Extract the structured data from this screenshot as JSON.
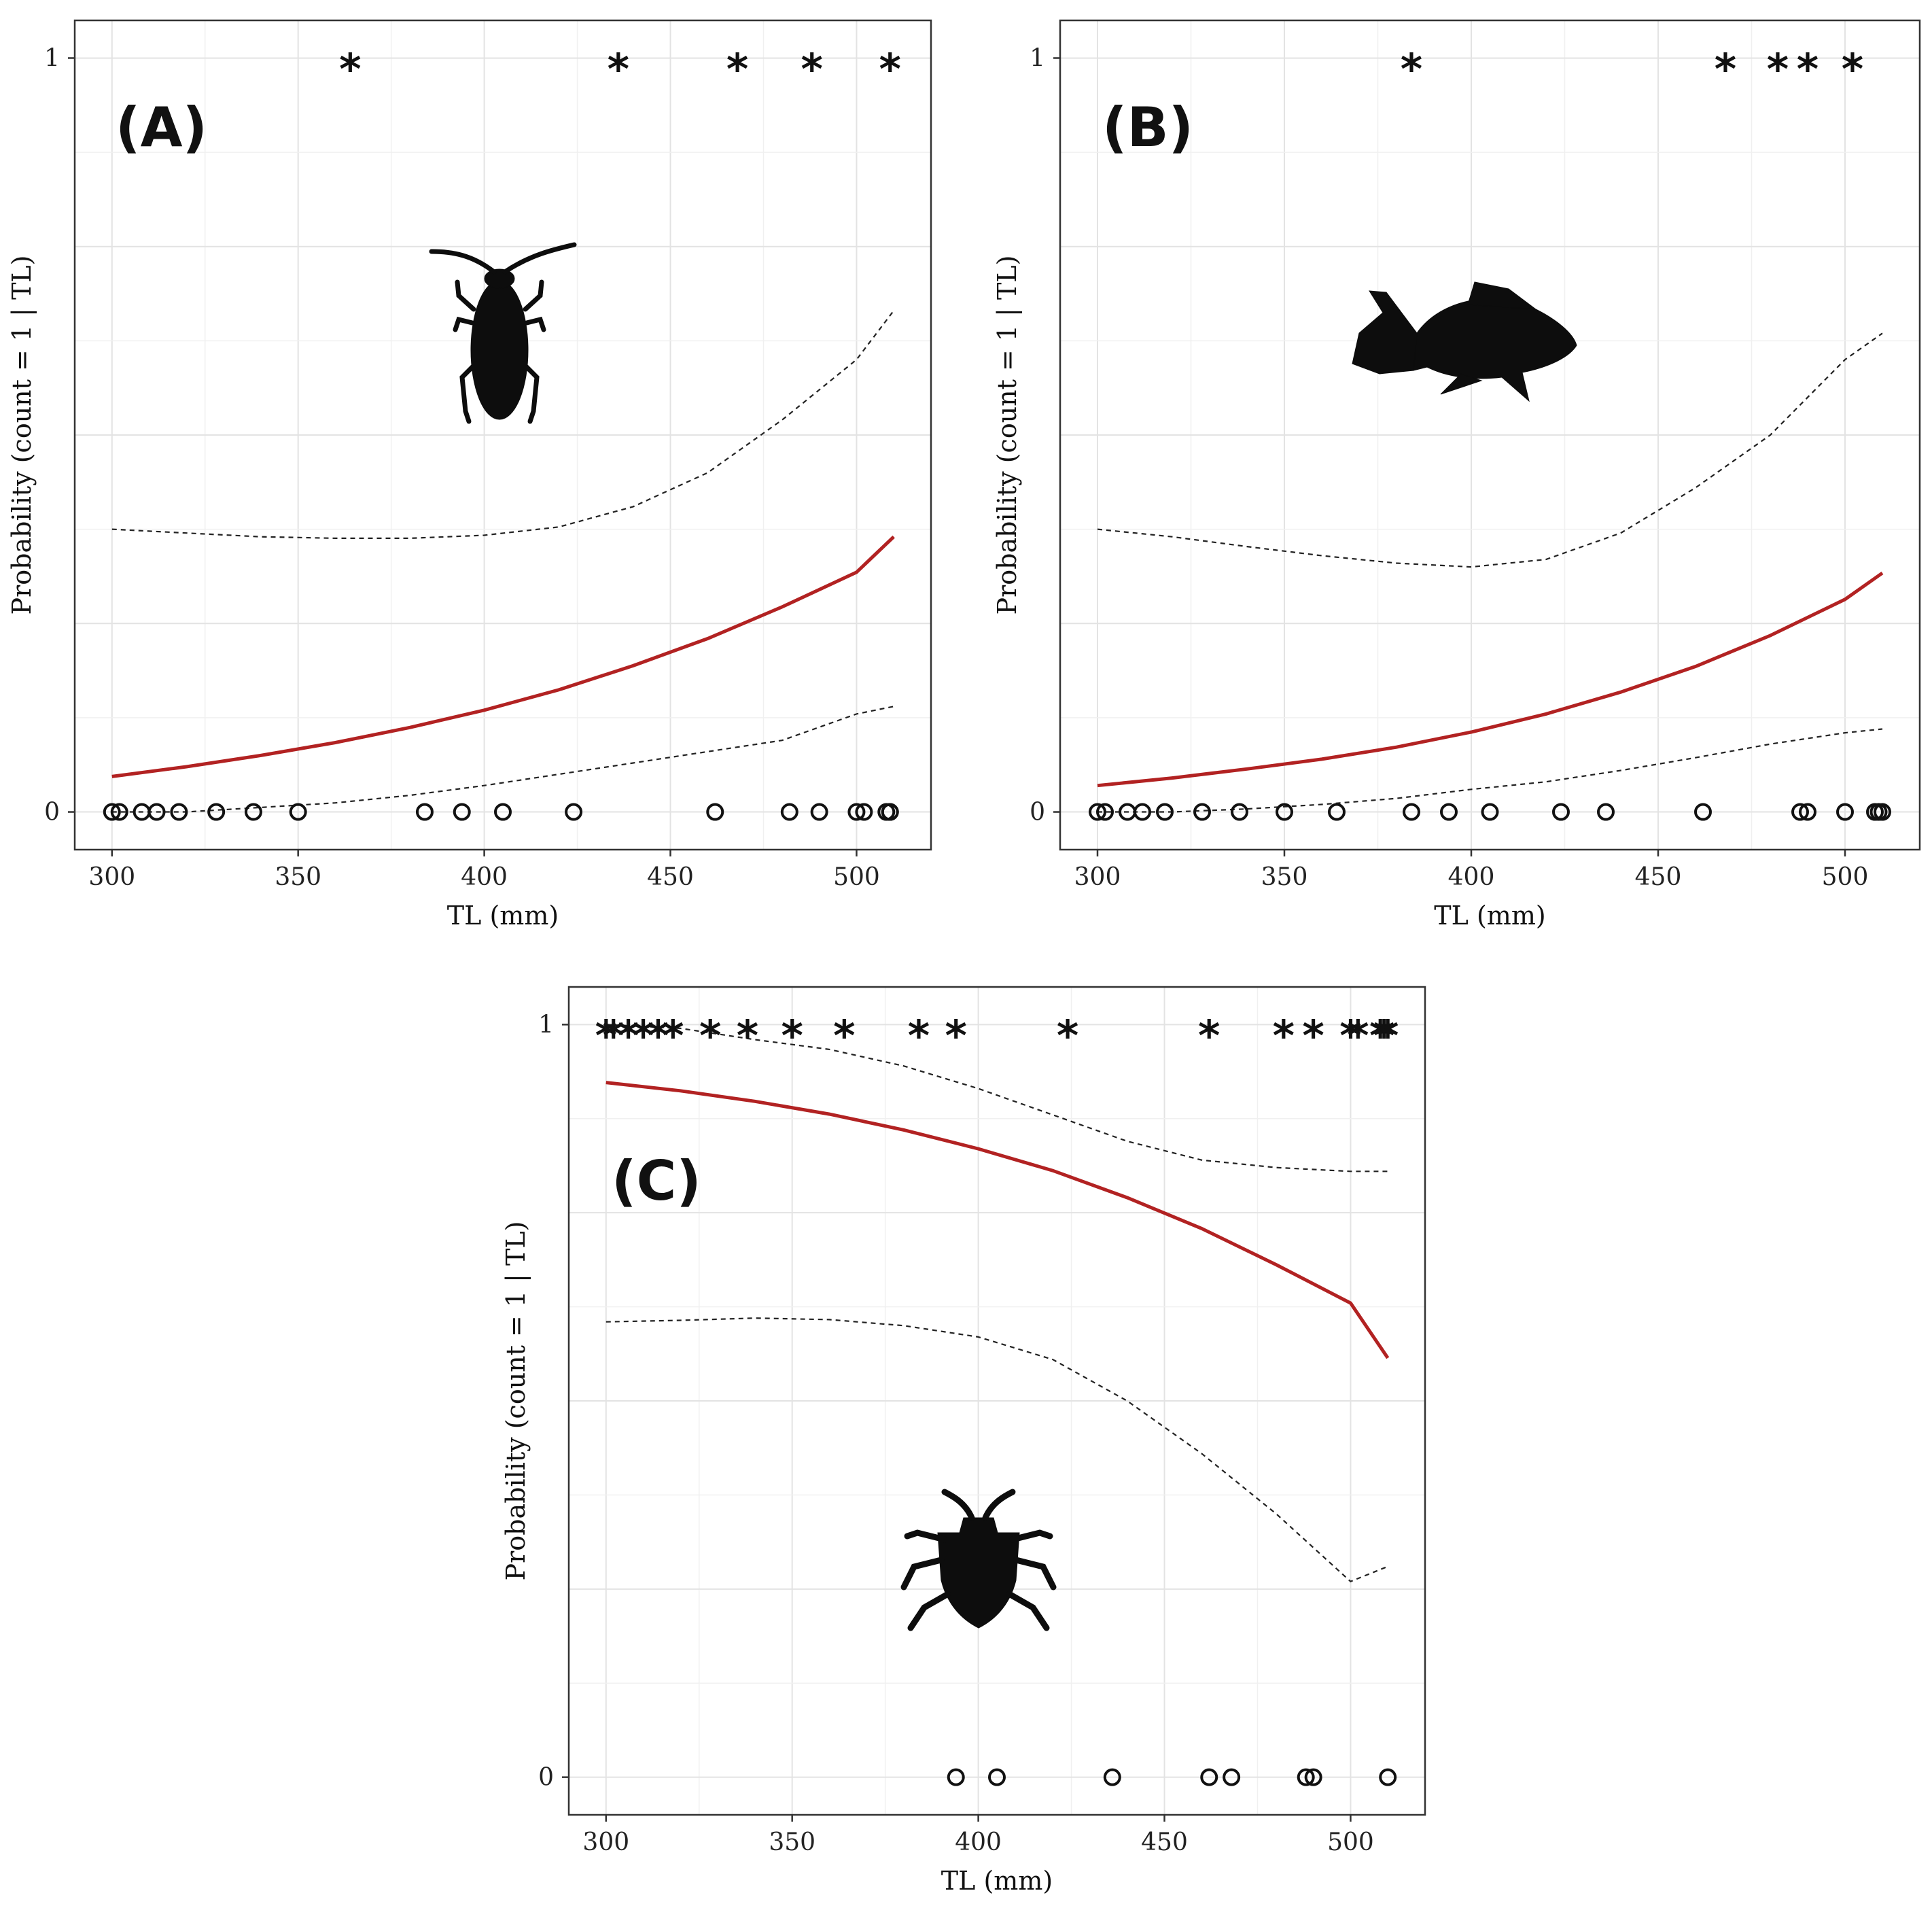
{
  "chart_data": [
    {
      "id": "A",
      "type": "scatter",
      "panel_label": "(A)",
      "icon": "cockroach-icon",
      "xlabel": "TL (mm)",
      "ylabel": "Probability (count = 1 | TL)",
      "xlim": [
        290,
        520
      ],
      "ylim": [
        -0.05,
        1.05
      ],
      "xticks": [
        300,
        350,
        400,
        450,
        500
      ],
      "yticks": [
        0,
        1
      ],
      "ytick_labels": [
        "0",
        "1"
      ],
      "grid": true,
      "fit": {
        "x": [
          300,
          320,
          340,
          360,
          380,
          400,
          420,
          440,
          460,
          480,
          500,
          510
        ],
        "y": [
          0.047,
          0.06,
          0.075,
          0.092,
          0.112,
          0.135,
          0.162,
          0.194,
          0.23,
          0.272,
          0.318,
          0.365
        ]
      },
      "ci_upper": {
        "x": [
          300,
          320,
          340,
          360,
          380,
          400,
          420,
          440,
          460,
          480,
          500,
          510
        ],
        "y": [
          0.375,
          0.37,
          0.365,
          0.363,
          0.363,
          0.367,
          0.378,
          0.405,
          0.45,
          0.52,
          0.6,
          0.665
        ]
      },
      "ci_lower": {
        "x": [
          300,
          320,
          340,
          360,
          380,
          400,
          420,
          440,
          460,
          480,
          500,
          510
        ],
        "y": [
          0.0,
          0.0,
          0.006,
          0.012,
          0.022,
          0.035,
          0.05,
          0.065,
          0.08,
          0.095,
          0.13,
          0.14
        ]
      },
      "points_1": [
        364,
        436,
        468,
        488,
        509
      ],
      "points_0": [
        300,
        302,
        308,
        312,
        318,
        328,
        338,
        350,
        384,
        394,
        405,
        424,
        462,
        482,
        490,
        500,
        502,
        508,
        509,
        509
      ]
    },
    {
      "id": "B",
      "type": "scatter",
      "panel_label": "(B)",
      "icon": "fish-icon",
      "xlabel": "TL (mm)",
      "ylabel": "Probability (count = 1 | TL)",
      "xlim": [
        290,
        520
      ],
      "ylim": [
        -0.05,
        1.05
      ],
      "xticks": [
        300,
        350,
        400,
        450,
        500
      ],
      "yticks": [
        0,
        1
      ],
      "ytick_labels": [
        "0",
        "1"
      ],
      "grid": true,
      "fit": {
        "x": [
          300,
          320,
          340,
          360,
          380,
          400,
          420,
          440,
          460,
          480,
          500,
          510
        ],
        "y": [
          0.035,
          0.045,
          0.057,
          0.07,
          0.086,
          0.106,
          0.13,
          0.159,
          0.193,
          0.234,
          0.282,
          0.317
        ]
      },
      "ci_upper": {
        "x": [
          300,
          320,
          340,
          360,
          380,
          400,
          420,
          440,
          460,
          480,
          500,
          510
        ],
        "y": [
          0.375,
          0.365,
          0.352,
          0.34,
          0.33,
          0.325,
          0.335,
          0.37,
          0.43,
          0.5,
          0.6,
          0.635
        ]
      },
      "ci_lower": {
        "x": [
          300,
          320,
          340,
          360,
          380,
          400,
          420,
          440,
          460,
          480,
          500,
          510
        ],
        "y": [
          0.0,
          0.0,
          0.004,
          0.01,
          0.018,
          0.03,
          0.04,
          0.055,
          0.072,
          0.09,
          0.105,
          0.11
        ]
      },
      "points_1": [
        384,
        468,
        482,
        490,
        502
      ],
      "points_0": [
        300,
        302,
        308,
        312,
        318,
        328,
        338,
        350,
        364,
        384,
        394,
        405,
        424,
        436,
        462,
        488,
        490,
        500,
        508,
        509,
        510
      ]
    },
    {
      "id": "C",
      "type": "scatter",
      "panel_label": "(C)",
      "icon": "stink-bug-icon",
      "xlabel": "TL (mm)",
      "ylabel": "Probability (count = 1 | TL)",
      "xlim": [
        290,
        520
      ],
      "ylim": [
        -0.05,
        1.05
      ],
      "xticks": [
        300,
        350,
        400,
        450,
        500
      ],
      "yticks": [
        0,
        1
      ],
      "ytick_labels": [
        "0",
        "1"
      ],
      "grid": true,
      "fit": {
        "x": [
          300,
          320,
          340,
          360,
          380,
          400,
          420,
          440,
          460,
          480,
          500,
          510
        ],
        "y": [
          0.923,
          0.912,
          0.898,
          0.881,
          0.86,
          0.835,
          0.806,
          0.77,
          0.729,
          0.681,
          0.63,
          0.557
        ]
      },
      "ci_upper": {
        "x": [
          300,
          320,
          340,
          360,
          380,
          400,
          420,
          440,
          460,
          480,
          500,
          510
        ],
        "y": [
          1.0,
          0.995,
          0.98,
          0.967,
          0.945,
          0.915,
          0.88,
          0.845,
          0.82,
          0.81,
          0.805,
          0.805
        ]
      },
      "ci_lower": {
        "x": [
          300,
          320,
          340,
          360,
          380,
          400,
          420,
          440,
          460,
          480,
          500,
          510
        ],
        "y": [
          0.605,
          0.607,
          0.61,
          0.608,
          0.6,
          0.585,
          0.555,
          0.5,
          0.43,
          0.35,
          0.26,
          0.28
        ]
      },
      "points_1": [
        300,
        302,
        306,
        310,
        314,
        318,
        328,
        338,
        350,
        364,
        384,
        394,
        424,
        462,
        482,
        490,
        500,
        502,
        508,
        509,
        510
      ],
      "points_0": [
        394,
        405,
        436,
        462,
        468,
        488,
        490,
        510
      ]
    }
  ]
}
